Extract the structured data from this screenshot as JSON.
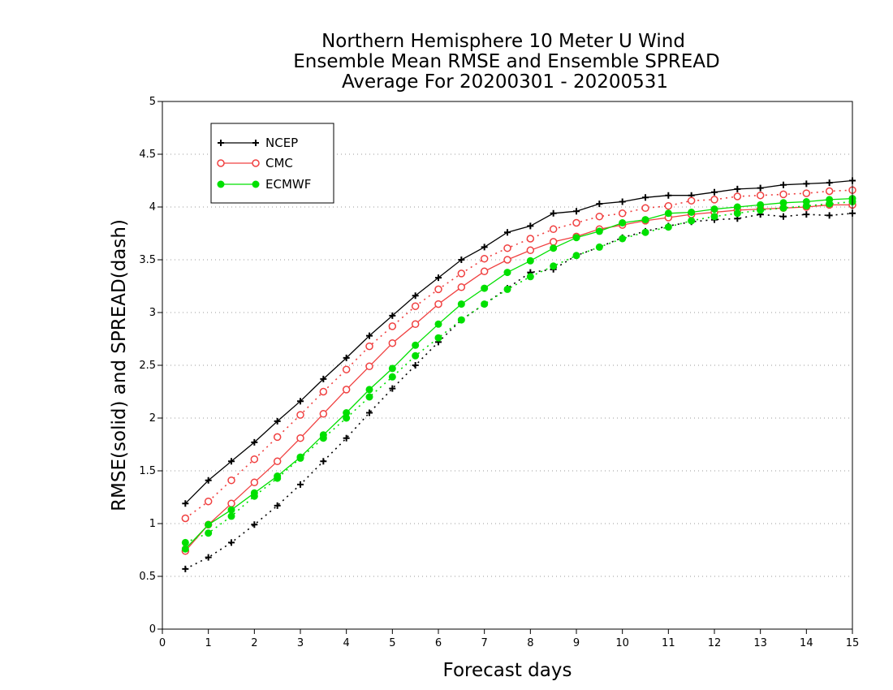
{
  "chart_data": {
    "type": "line",
    "title_lines": [
      "Northern Hemisphere 10 Meter U Wind",
      "Ensemble Mean RMSE and Ensemble SPREAD",
      "Average For 20200301 - 20200531"
    ],
    "xlabel": "Forecast days",
    "ylabel": "RMSE(solid) and SPREAD(dash)",
    "xlim": [
      0,
      15
    ],
    "ylim": [
      0,
      5
    ],
    "x_ticks": [
      "0",
      "1",
      "2",
      "3",
      "4",
      "5",
      "6",
      "7",
      "8",
      "9",
      "10",
      "11",
      "12",
      "13",
      "14",
      "15"
    ],
    "y_ticks": [
      "0",
      "0.5",
      "1",
      "1.5",
      "2",
      "2.5",
      "3",
      "3.5",
      "4",
      "4.5",
      "5"
    ],
    "grid": "horizontal dotted",
    "legend_placement": "top-left",
    "x": [
      0.5,
      1,
      1.5,
      2,
      2.5,
      3,
      3.5,
      4,
      4.5,
      5,
      5.5,
      6,
      6.5,
      7,
      7.5,
      8,
      8.5,
      9,
      9.5,
      10,
      10.5,
      11,
      11.5,
      12,
      12.5,
      13,
      13.5,
      14,
      14.5,
      15
    ],
    "series": [
      {
        "name": "NCEP",
        "color": "#000000",
        "marker": "plus",
        "rmse": [
          1.19,
          1.41,
          1.59,
          1.77,
          1.97,
          2.16,
          2.37,
          2.57,
          2.78,
          2.97,
          3.16,
          3.33,
          3.5,
          3.62,
          3.76,
          3.82,
          3.94,
          3.96,
          4.03,
          4.05,
          4.09,
          4.11,
          4.11,
          4.14,
          4.17,
          4.18,
          4.21,
          4.22,
          4.23,
          4.25
        ],
        "spread": [
          0.57,
          0.68,
          0.82,
          0.99,
          1.17,
          1.37,
          1.59,
          1.81,
          2.05,
          2.28,
          2.5,
          2.72,
          2.93,
          3.08,
          3.23,
          3.38,
          3.41,
          3.54,
          3.62,
          3.71,
          3.77,
          3.82,
          3.86,
          3.88,
          3.89,
          3.93,
          3.91,
          3.93,
          3.92,
          3.94
        ]
      },
      {
        "name": "CMC",
        "color": "#f04040",
        "marker": "open-circle",
        "rmse": [
          0.74,
          0.99,
          1.19,
          1.39,
          1.59,
          1.81,
          2.04,
          2.27,
          2.49,
          2.71,
          2.89,
          3.08,
          3.24,
          3.39,
          3.5,
          3.59,
          3.67,
          3.72,
          3.79,
          3.83,
          3.87,
          3.9,
          3.93,
          3.95,
          3.97,
          3.98,
          3.99,
          4.0,
          4.02,
          4.02
        ],
        "spread": [
          1.05,
          1.21,
          1.41,
          1.61,
          1.82,
          2.03,
          2.25,
          2.46,
          2.68,
          2.87,
          3.06,
          3.22,
          3.37,
          3.51,
          3.61,
          3.7,
          3.79,
          3.85,
          3.91,
          3.94,
          3.99,
          4.01,
          4.06,
          4.07,
          4.1,
          4.11,
          4.12,
          4.13,
          4.15,
          4.16
        ]
      },
      {
        "name": "ECMWF",
        "color": "#00e000",
        "marker": "filled-circle",
        "rmse": [
          0.76,
          0.99,
          1.13,
          1.29,
          1.45,
          1.63,
          1.84,
          2.05,
          2.27,
          2.47,
          2.69,
          2.89,
          3.08,
          3.23,
          3.38,
          3.49,
          3.61,
          3.71,
          3.77,
          3.85,
          3.88,
          3.94,
          3.95,
          3.98,
          4.0,
          4.02,
          4.04,
          4.05,
          4.07,
          4.08
        ],
        "spread": [
          0.82,
          0.91,
          1.07,
          1.26,
          1.43,
          1.62,
          1.81,
          2.0,
          2.2,
          2.39,
          2.59,
          2.76,
          2.93,
          3.08,
          3.22,
          3.34,
          3.44,
          3.54,
          3.62,
          3.7,
          3.76,
          3.81,
          3.87,
          3.91,
          3.94,
          3.97,
          3.99,
          4.01,
          4.03,
          4.05
        ]
      }
    ]
  }
}
